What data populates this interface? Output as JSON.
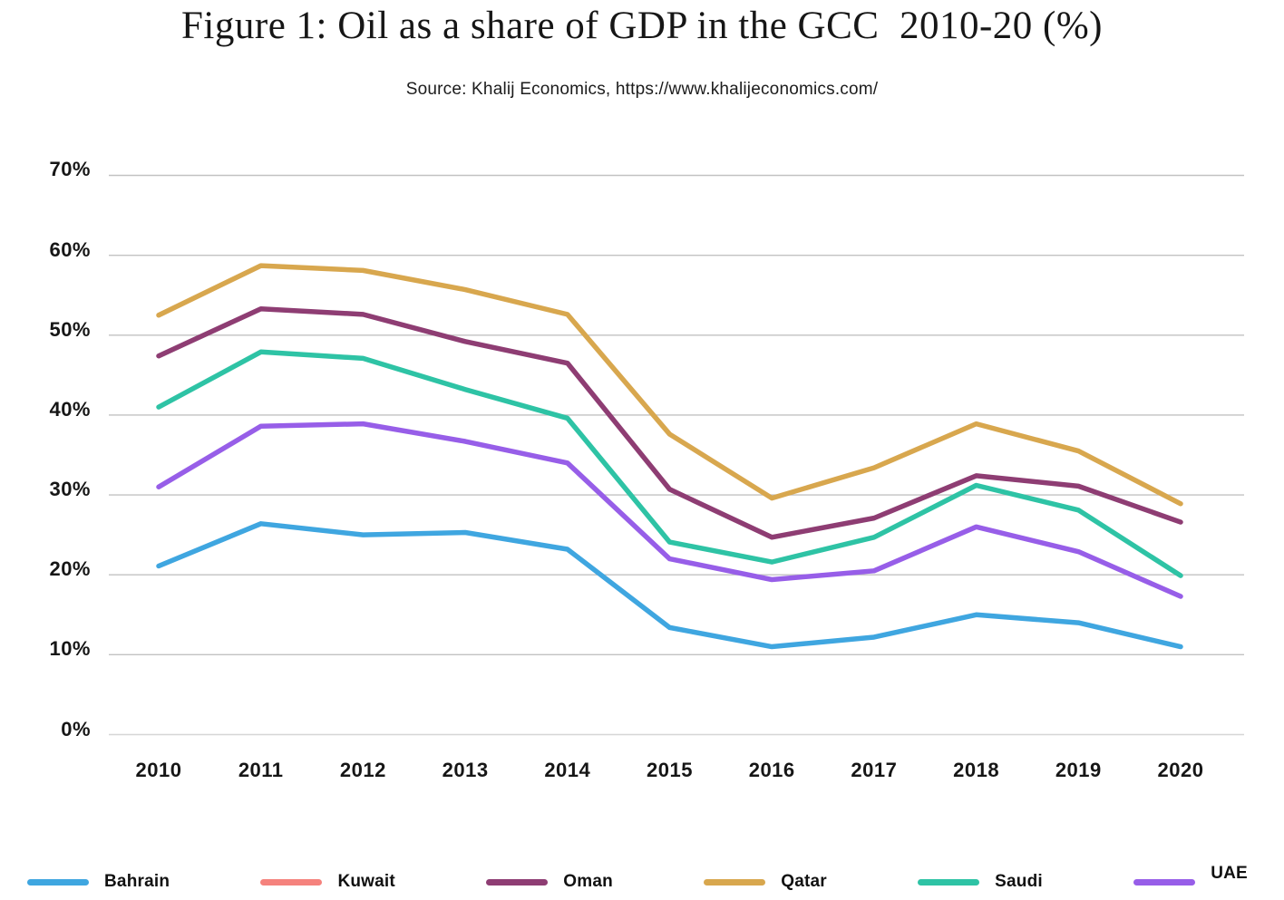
{
  "chart_data": {
    "type": "line",
    "title": "Figure 1: Oil as a share of GDP in the GCC  2010-20 (%)",
    "source": "Source: Khalij Economics, https://www.khalijeconomics.com/",
    "categories": [
      "2010",
      "2011",
      "2012",
      "2013",
      "2014",
      "2015",
      "2016",
      "2017",
      "2018",
      "2019",
      "2020"
    ],
    "ytick_labels": [
      "70%",
      "60%",
      "50%",
      "40%",
      "30%",
      "20%",
      "10%",
      "0%"
    ],
    "ylim": [
      0,
      70
    ],
    "grid": "horizontal",
    "legend_position": "bottom",
    "gridline_color": "#c2c2c2",
    "series": [
      {
        "name": "Bahrain",
        "color": "#3fa6e0",
        "plotted": true,
        "values": [
          21.1,
          26.4,
          25.0,
          25.3,
          23.2,
          13.4,
          11.0,
          12.2,
          15.0,
          14.0,
          11.0
        ]
      },
      {
        "name": "Kuwait",
        "color": "#f5827d",
        "plotted": false,
        "values": null
      },
      {
        "name": "Oman",
        "color": "#8e3d73",
        "plotted": true,
        "values": [
          47.4,
          53.3,
          52.6,
          49.2,
          46.5,
          30.7,
          24.7,
          27.1,
          32.4,
          31.1,
          26.6
        ]
      },
      {
        "name": "Qatar",
        "color": "#d8a74e",
        "plotted": true,
        "values": [
          52.5,
          58.7,
          58.1,
          55.7,
          52.6,
          37.6,
          29.6,
          33.4,
          38.9,
          35.5,
          28.9
        ]
      },
      {
        "name": "Saudi",
        "color": "#2ec3a5",
        "plotted": true,
        "values": [
          41.0,
          47.9,
          47.1,
          43.2,
          39.6,
          24.1,
          21.6,
          24.7,
          31.2,
          28.1,
          19.9
        ]
      },
      {
        "name": "UAE",
        "color": "#975ee8",
        "plotted": true,
        "values": [
          31.0,
          38.6,
          38.9,
          36.7,
          34.0,
          22.0,
          19.4,
          20.5,
          26.0,
          22.9,
          17.3
        ]
      }
    ]
  }
}
